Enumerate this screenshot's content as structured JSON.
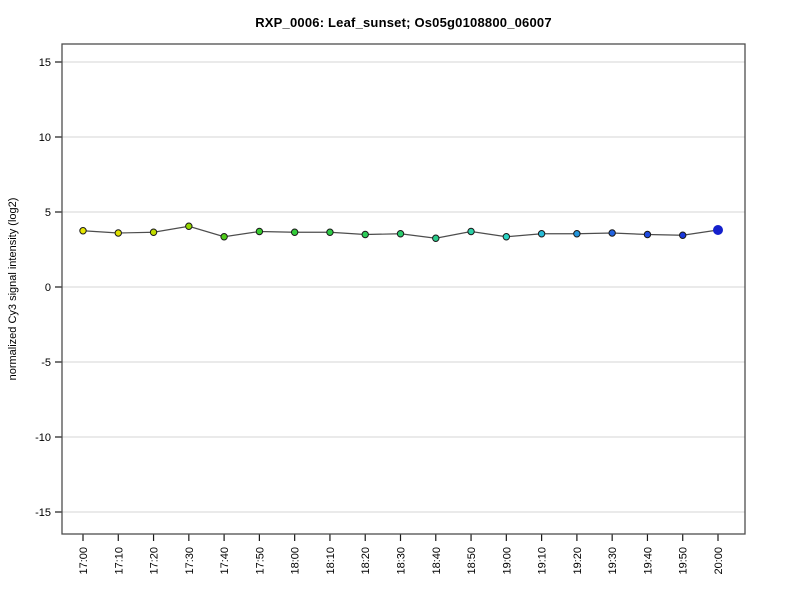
{
  "chart_data": {
    "type": "line",
    "title": "RXP_0006: Leaf_sunset; Os05g0108800_06007",
    "xlabel": "",
    "ylabel": "normalized Cy3 signal intensity (log2)",
    "legend": "none",
    "grid": "horizontal-only",
    "grid_color": "#e3e3e3",
    "frame_color": "#4d4d4d",
    "line_color": "#4d4d4d",
    "ylim": [
      -16.3,
      16.3
    ],
    "y_ticks": [
      15,
      10,
      5,
      0,
      -5,
      -10,
      -15
    ],
    "categories": [
      "17:00",
      "17:10",
      "17:20",
      "17:30",
      "17:40",
      "17:50",
      "18:00",
      "18:10",
      "18:20",
      "18:30",
      "18:40",
      "18:50",
      "19:00",
      "19:10",
      "19:20",
      "19:30",
      "19:40",
      "19:50",
      "20:00"
    ],
    "values": [
      3.75,
      3.6,
      3.65,
      4.05,
      3.35,
      3.7,
      3.65,
      3.65,
      3.5,
      3.55,
      3.25,
      3.7,
      3.35,
      3.55,
      3.55,
      3.6,
      3.5,
      3.45,
      3.8
    ],
    "point_colors": [
      "#e6e600",
      "#dfe000",
      "#c0dc00",
      "#96d800",
      "#4fcc1a",
      "#38cc2e",
      "#32cc38",
      "#2ecc46",
      "#2ccc58",
      "#2acc6c",
      "#2acc8a",
      "#2ad0a6",
      "#2cd4c4",
      "#28bcd8",
      "#2496dc",
      "#2162e0",
      "#1e4ae0",
      "#1a38dc",
      "#1420cc"
    ],
    "last_point": {
      "color": "#1420cc",
      "style": "solid-large"
    }
  }
}
